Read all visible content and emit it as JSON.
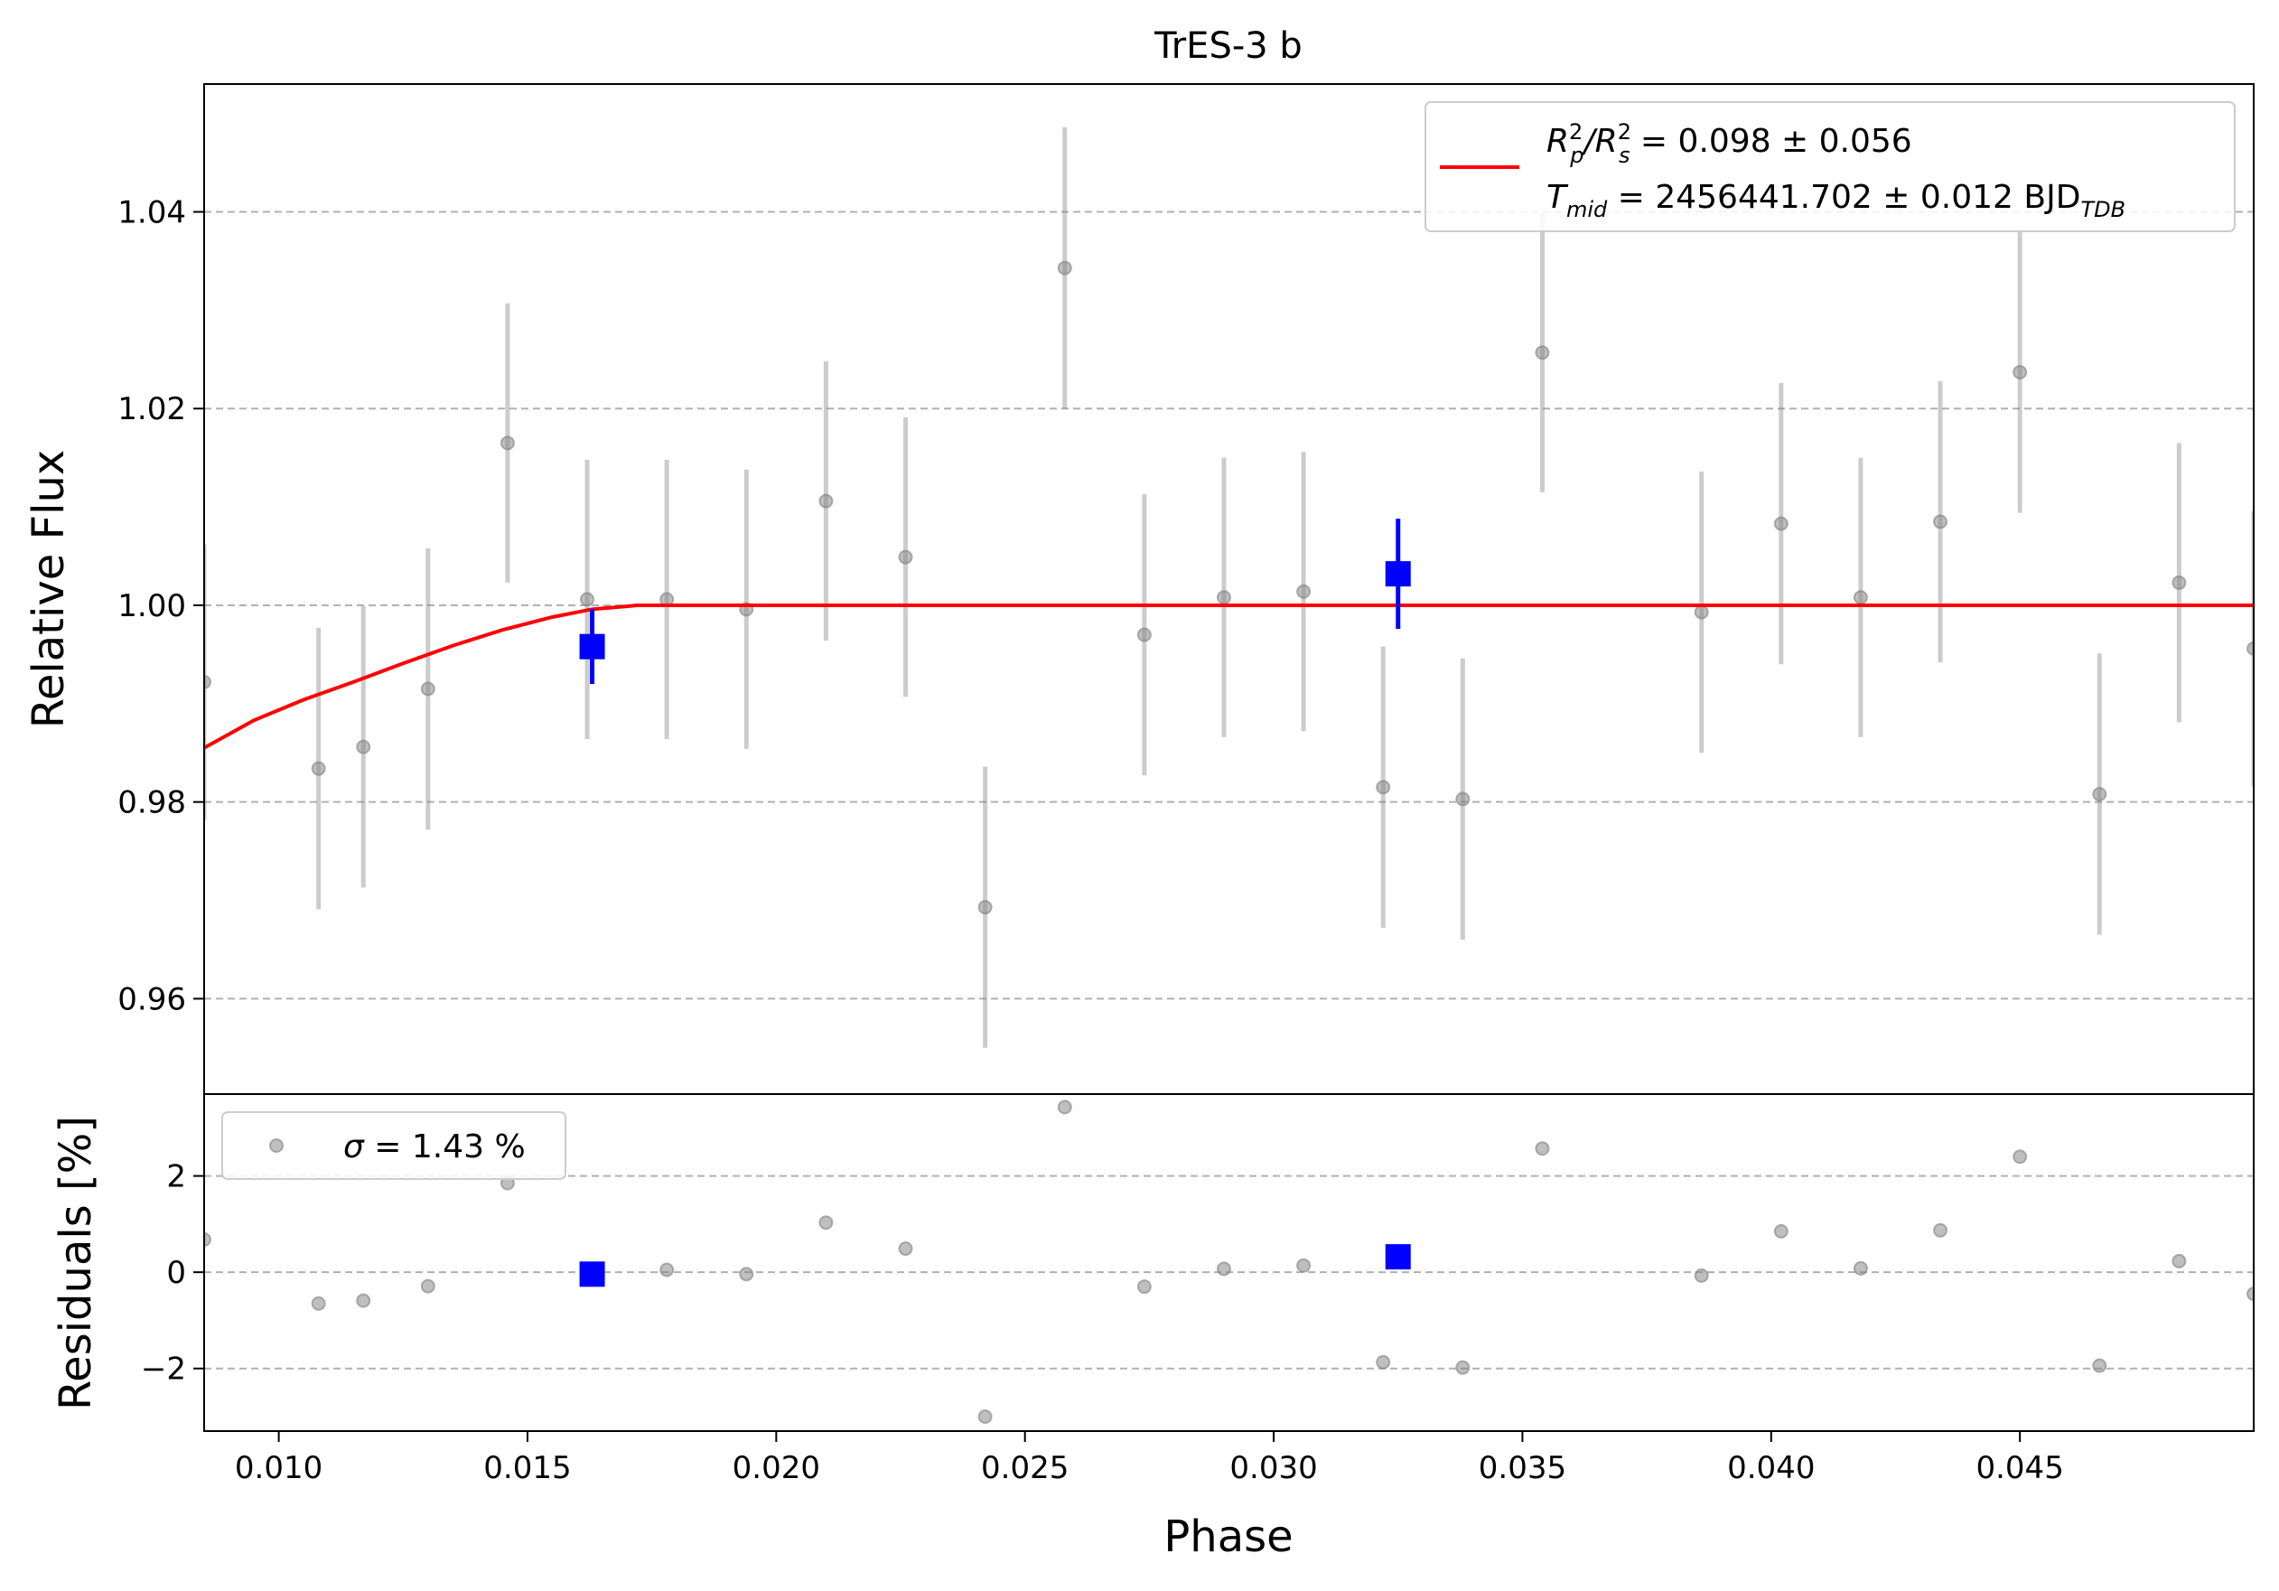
{
  "chart_data": [
    {
      "type": "scatter",
      "panel": "main",
      "title": "TrES-3 b",
      "xlabel": "",
      "ylabel": "Relative Flux",
      "xlim": [
        0.0085,
        0.0497
      ],
      "ylim": [
        0.9503,
        1.053
      ],
      "yticks": [
        0.96,
        0.98,
        1.0,
        1.02,
        1.04
      ],
      "ytick_labels": [
        "0.96",
        "0.98",
        "1.00",
        "1.02",
        "1.04"
      ],
      "grid": "horizontal dashed",
      "legend": {
        "placement": "top-right",
        "line1_lhs_a": "R",
        "line1_lhs_sup_a": "2",
        "line1_lhs_sub_a": "p",
        "line1_lhs_b": "/R",
        "line1_lhs_sup_b": "2",
        "line1_lhs_sub_b": "s",
        "line1_rhs": " = 0.098 ± 0.056",
        "line2_sym": "T",
        "line2_sub": "mid",
        "line2_rhs": " = 2456441.702 ± 0.012 BJD",
        "line2_unit_sub": "TDB",
        "line_color": "#ff0000"
      },
      "series": [
        {
          "kind": "points",
          "color": "#808080",
          "x": [
            0.0085,
            0.0108,
            0.0117,
            0.013,
            0.0146,
            0.0162,
            0.0178,
            0.0194,
            0.021,
            0.0226,
            0.0242,
            0.0258,
            0.0274,
            0.029,
            0.0306,
            0.0322,
            0.0338,
            0.0354,
            0.0386,
            0.0402,
            0.0418,
            0.0434,
            0.045,
            0.0466,
            0.0482,
            0.0497
          ],
          "y": [
            0.9922,
            0.9834,
            0.9856,
            0.9915,
            1.0165,
            1.0006,
            1.0006,
            0.9996,
            1.0106,
            1.0049,
            0.9693,
            1.0343,
            0.997,
            1.0008,
            1.0014,
            0.9815,
            0.9803,
            1.0257,
            0.9993,
            1.0083,
            1.0008,
            1.0085,
            1.0237,
            0.9808,
            1.0023,
            0.9956
          ],
          "yerr": [
            0.014,
            0.0143,
            0.0143,
            0.0143,
            0.0142,
            0.0142,
            0.0142,
            0.0142,
            0.0142,
            0.0142,
            0.0143,
            0.0143,
            0.0143,
            0.0142,
            0.0142,
            0.0143,
            0.0143,
            0.0142,
            0.0143,
            0.0143,
            0.0142,
            0.0143,
            0.0143,
            0.0143,
            0.0142,
            0.014
          ]
        },
        {
          "kind": "binned",
          "color": "#0000ff",
          "x": [
            0.0163,
            0.0325
          ],
          "y": [
            0.9958,
            1.0032
          ],
          "yerr": [
            0.0038,
            0.0056
          ]
        },
        {
          "kind": "model",
          "color": "#ff0000",
          "x": [
            0.0085,
            0.0095,
            0.0105,
            0.0115,
            0.0125,
            0.0135,
            0.0145,
            0.0155,
            0.0163,
            0.017,
            0.0172,
            0.0497
          ],
          "y": [
            0.9855,
            0.9883,
            0.9904,
            0.9922,
            0.9941,
            0.9959,
            0.9975,
            0.9988,
            0.9996,
            0.9999,
            1.0,
            1.0
          ]
        }
      ]
    },
    {
      "type": "scatter",
      "panel": "residuals",
      "xlabel": "Phase",
      "ylabel": "Residuals [%]",
      "xlim": [
        0.0085,
        0.0497
      ],
      "ylim": [
        -3.3,
        3.7
      ],
      "xticks": [
        0.01,
        0.015,
        0.02,
        0.025,
        0.03,
        0.035,
        0.04,
        0.045
      ],
      "xtick_labels": [
        "0.010",
        "0.015",
        "0.020",
        "0.025",
        "0.030",
        "0.035",
        "0.040",
        "0.045"
      ],
      "yticks": [
        -2,
        0,
        2
      ],
      "ytick_labels": [
        "−2",
        "0",
        "2"
      ],
      "grid": "horizontal dashed",
      "legend": {
        "placement": "top-left",
        "sym": "σ",
        "rhs": " = 1.43 %"
      },
      "series": [
        {
          "kind": "points",
          "color": "#808080",
          "x": [
            0.0085,
            0.0108,
            0.0117,
            0.013,
            0.0146,
            0.0162,
            0.0178,
            0.0194,
            0.021,
            0.0226,
            0.0242,
            0.0258,
            0.0274,
            0.029,
            0.0306,
            0.0322,
            0.0338,
            0.0354,
            0.0386,
            0.0402,
            0.0418,
            0.0434,
            0.045,
            0.0466,
            0.0482,
            0.0497
          ],
          "y": [
            0.68,
            -0.65,
            -0.59,
            -0.29,
            1.85,
            0.0,
            0.05,
            -0.04,
            1.03,
            0.49,
            -3.0,
            3.43,
            -0.3,
            0.07,
            0.14,
            -1.87,
            -1.98,
            2.57,
            -0.07,
            0.85,
            0.08,
            0.87,
            2.4,
            -1.94,
            0.23,
            -0.45
          ]
        },
        {
          "kind": "binned",
          "color": "#0000ff",
          "x": [
            0.0163,
            0.0325
          ],
          "y": [
            -0.04,
            0.32
          ]
        }
      ]
    }
  ]
}
